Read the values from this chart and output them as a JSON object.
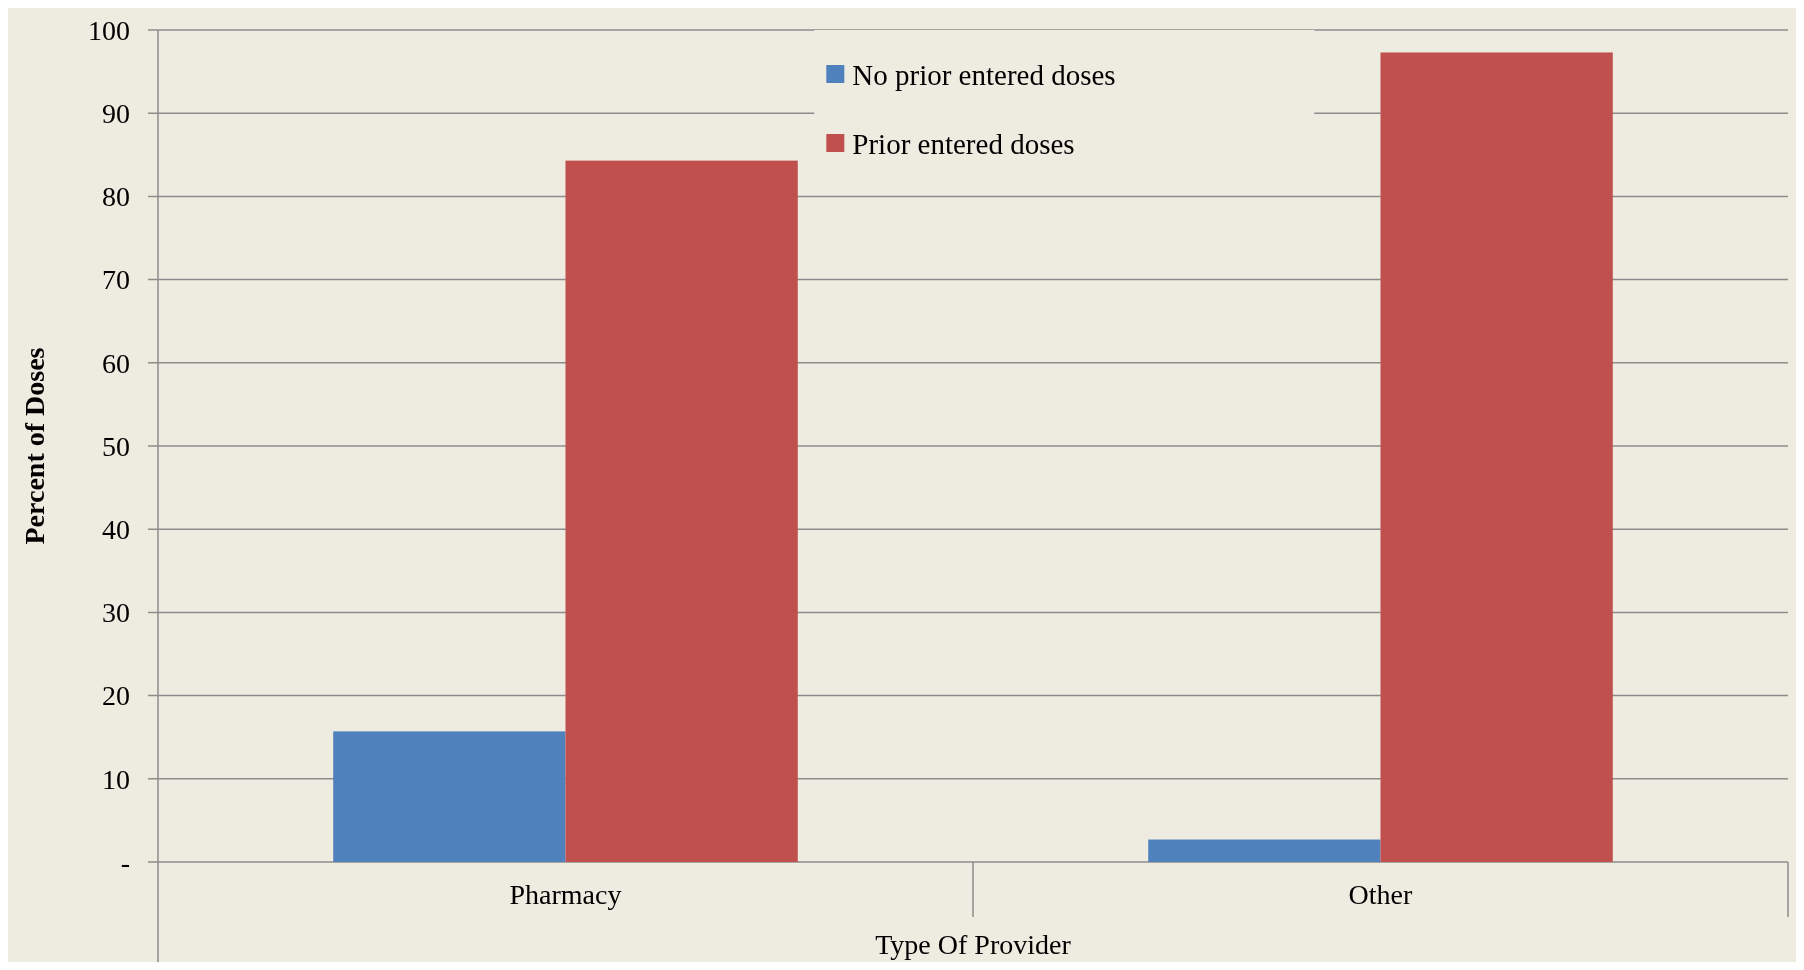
{
  "chart_data": {
    "type": "bar",
    "xlabel": "Type Of Provider",
    "ylabel": "Percent of Doses",
    "categories": [
      "Pharmacy",
      "Other"
    ],
    "series": [
      {
        "name": "No prior entered doses",
        "color": "#4f81bd",
        "values": [
          15.7,
          2.7
        ]
      },
      {
        "name": "Prior entered doses",
        "color": "#c0504d",
        "values": [
          84.3,
          97.3
        ]
      }
    ],
    "ylim": [
      0,
      100
    ],
    "yticks": [
      {
        "value": 0,
        "label": "-"
      },
      10,
      20,
      30,
      40,
      50,
      60,
      70,
      80,
      90,
      100
    ],
    "grid": "y",
    "legend": "top"
  }
}
